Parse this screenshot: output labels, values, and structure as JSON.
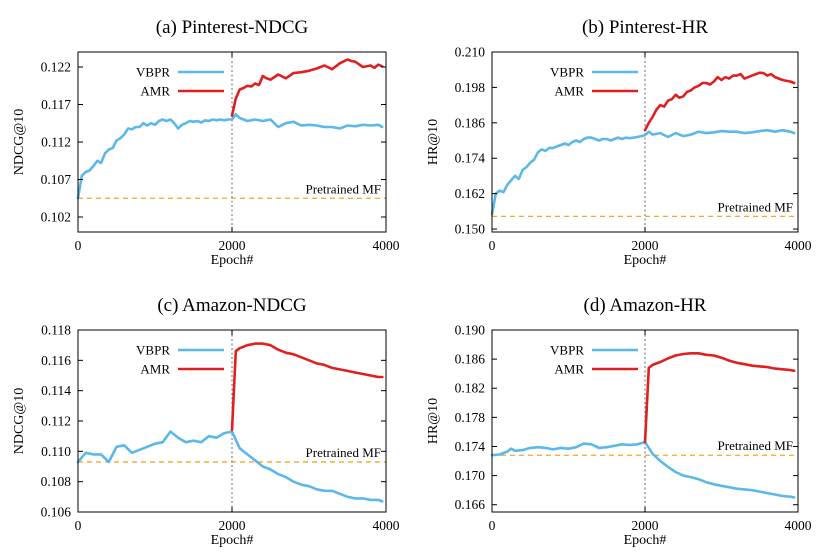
{
  "chart_data": [
    {
      "type": "line",
      "title": "(a) Pinterest-NDCG",
      "xlabel": "Epoch#",
      "ylabel": "NDCG@10",
      "xlim": [
        0,
        4000
      ],
      "ylim": [
        0.1,
        0.124
      ],
      "xticks": [
        "0",
        "2000",
        "4000"
      ],
      "yticks": [
        "0.102",
        "0.107",
        "0.112",
        "0.117",
        "0.122"
      ],
      "ytick_values": [
        0.102,
        0.107,
        0.112,
        0.117,
        0.122
      ],
      "grid": false,
      "legend_position": "top-left",
      "divider_x": 2000,
      "reference": {
        "label": "Pretrained MF",
        "y": 0.1045,
        "color": "#f5a623"
      },
      "series": [
        {
          "name": "VBPR",
          "color": "#5bb8e8",
          "x": [
            0,
            50,
            100,
            150,
            200,
            250,
            300,
            350,
            400,
            450,
            500,
            550,
            600,
            650,
            700,
            750,
            800,
            850,
            900,
            950,
            1000,
            1050,
            1100,
            1150,
            1200,
            1250,
            1300,
            1350,
            1400,
            1450,
            1500,
            1550,
            1600,
            1650,
            1700,
            1750,
            1800,
            1850,
            1900,
            1950,
            2000,
            2050,
            2100,
            2200,
            2300,
            2400,
            2500,
            2600,
            2700,
            2800,
            2900,
            3000,
            3100,
            3200,
            3300,
            3400,
            3500,
            3600,
            3700,
            3800,
            3900,
            3950
          ],
          "y": [
            0.1045,
            0.1075,
            0.108,
            0.1082,
            0.1088,
            0.1095,
            0.1092,
            0.1105,
            0.111,
            0.1112,
            0.1122,
            0.1125,
            0.113,
            0.1138,
            0.1137,
            0.114,
            0.114,
            0.1145,
            0.1142,
            0.1145,
            0.1143,
            0.1148,
            0.115,
            0.1148,
            0.115,
            0.1145,
            0.1138,
            0.1143,
            0.1145,
            0.1148,
            0.1147,
            0.1148,
            0.1146,
            0.1149,
            0.1148,
            0.115,
            0.1149,
            0.115,
            0.1149,
            0.115,
            0.115,
            0.1157,
            0.1152,
            0.1148,
            0.115,
            0.1148,
            0.115,
            0.114,
            0.1145,
            0.1147,
            0.1142,
            0.1143,
            0.1142,
            0.114,
            0.114,
            0.1138,
            0.1142,
            0.1141,
            0.1143,
            0.1142,
            0.1143,
            0.114
          ]
        },
        {
          "name": "AMR",
          "color": "#e02020",
          "x": [
            2000,
            2050,
            2100,
            2150,
            2200,
            2250,
            2300,
            2350,
            2400,
            2450,
            2500,
            2600,
            2700,
            2800,
            2900,
            3000,
            3100,
            3200,
            3300,
            3400,
            3500,
            3550,
            3600,
            3700,
            3800,
            3850,
            3900,
            3950
          ],
          "y": [
            0.1155,
            0.1178,
            0.119,
            0.1192,
            0.1195,
            0.1194,
            0.1198,
            0.1196,
            0.1208,
            0.1205,
            0.1203,
            0.121,
            0.1205,
            0.1212,
            0.1213,
            0.1215,
            0.1218,
            0.1222,
            0.1217,
            0.1225,
            0.123,
            0.1228,
            0.1227,
            0.122,
            0.1222,
            0.1219,
            0.1223,
            0.1221
          ]
        }
      ]
    },
    {
      "type": "line",
      "title": "(b) Pinterest-HR",
      "xlabel": "Epoch#",
      "ylabel": "HR@10",
      "xlim": [
        0,
        4000
      ],
      "ylim": [
        0.149,
        0.21
      ],
      "xticks": [
        "0",
        "2000",
        "4000"
      ],
      "yticks": [
        "0.150",
        "0.162",
        "0.174",
        "0.186",
        "0.198",
        "0.210"
      ],
      "ytick_values": [
        0.15,
        0.162,
        0.174,
        0.186,
        0.198,
        0.21
      ],
      "grid": false,
      "legend_position": "top-left",
      "divider_x": 2000,
      "reference": {
        "label": "Pretrained MF",
        "y": 0.1543,
        "color": "#f5a623"
      },
      "series": [
        {
          "name": "VBPR",
          "color": "#5bb8e8",
          "x": [
            0,
            50,
            100,
            150,
            200,
            250,
            300,
            350,
            400,
            450,
            500,
            550,
            600,
            650,
            700,
            750,
            800,
            850,
            900,
            950,
            1000,
            1050,
            1100,
            1150,
            1200,
            1250,
            1300,
            1350,
            1400,
            1450,
            1500,
            1550,
            1600,
            1650,
            1700,
            1750,
            1800,
            1850,
            1900,
            1950,
            2000,
            2050,
            2100,
            2200,
            2300,
            2400,
            2500,
            2600,
            2700,
            2800,
            2900,
            3000,
            3100,
            3200,
            3300,
            3400,
            3500,
            3600,
            3700,
            3800,
            3900,
            3950
          ],
          "y": [
            0.155,
            0.162,
            0.163,
            0.1625,
            0.165,
            0.1665,
            0.168,
            0.167,
            0.17,
            0.171,
            0.1725,
            0.1735,
            0.176,
            0.177,
            0.1765,
            0.1775,
            0.1775,
            0.178,
            0.1785,
            0.179,
            0.1785,
            0.1795,
            0.18,
            0.1795,
            0.1805,
            0.181,
            0.181,
            0.1805,
            0.18,
            0.1805,
            0.1805,
            0.18,
            0.1805,
            0.181,
            0.1805,
            0.181,
            0.1808,
            0.181,
            0.1812,
            0.1815,
            0.1818,
            0.183,
            0.182,
            0.1825,
            0.1812,
            0.1825,
            0.1815,
            0.182,
            0.183,
            0.1825,
            0.1828,
            0.1832,
            0.183,
            0.183,
            0.1825,
            0.1828,
            0.1832,
            0.1835,
            0.183,
            0.1835,
            0.183,
            0.1825
          ]
        },
        {
          "name": "AMR",
          "color": "#e02020",
          "x": [
            2000,
            2050,
            2100,
            2150,
            2200,
            2250,
            2300,
            2350,
            2400,
            2450,
            2500,
            2550,
            2600,
            2650,
            2700,
            2750,
            2800,
            2850,
            2900,
            2950,
            3000,
            3050,
            3100,
            3150,
            3200,
            3250,
            3300,
            3350,
            3400,
            3450,
            3500,
            3550,
            3600,
            3650,
            3700,
            3750,
            3800,
            3850,
            3900,
            3950
          ],
          "y": [
            0.1835,
            0.186,
            0.188,
            0.1905,
            0.192,
            0.1915,
            0.1935,
            0.194,
            0.1955,
            0.1945,
            0.195,
            0.1965,
            0.197,
            0.198,
            0.1985,
            0.1995,
            0.1995,
            0.199,
            0.2,
            0.2015,
            0.2005,
            0.2015,
            0.201,
            0.202,
            0.202,
            0.2025,
            0.201,
            0.2015,
            0.202,
            0.2025,
            0.203,
            0.2028,
            0.202,
            0.2025,
            0.2015,
            0.201,
            0.2005,
            0.2002,
            0.2,
            0.1995
          ]
        }
      ]
    },
    {
      "type": "line",
      "title": "(c) Amazon-NDCG",
      "xlabel": "Epoch#",
      "ylabel": "NDCG@10",
      "xlim": [
        0,
        4000
      ],
      "ylim": [
        0.106,
        0.118
      ],
      "xticks": [
        "0",
        "2000",
        "4000"
      ],
      "yticks": [
        "0.106",
        "0.108",
        "0.110",
        "0.112",
        "0.114",
        "0.116",
        "0.118"
      ],
      "ytick_values": [
        0.106,
        0.108,
        0.11,
        0.112,
        0.114,
        0.116,
        0.118
      ],
      "grid": false,
      "legend_position": "top-left",
      "divider_x": 2000,
      "reference": {
        "label": "Pretrained MF",
        "y": 0.1093,
        "color": "#f5a623"
      },
      "series": [
        {
          "name": "VBPR",
          "color": "#5bb8e8",
          "x": [
            0,
            100,
            200,
            300,
            400,
            500,
            600,
            700,
            800,
            900,
            1000,
            1100,
            1200,
            1250,
            1300,
            1400,
            1500,
            1600,
            1700,
            1800,
            1900,
            2000,
            2100,
            2200,
            2300,
            2400,
            2500,
            2600,
            2700,
            2800,
            2900,
            3000,
            3100,
            3200,
            3300,
            3400,
            3500,
            3600,
            3700,
            3800,
            3900,
            3950
          ],
          "y": [
            0.1093,
            0.1099,
            0.1098,
            0.1098,
            0.1093,
            0.1103,
            0.1104,
            0.1099,
            0.1101,
            0.1103,
            0.1105,
            0.1106,
            0.1113,
            0.1111,
            0.1109,
            0.1106,
            0.1107,
            0.1106,
            0.111,
            0.1109,
            0.1112,
            0.1113,
            0.1102,
            0.1098,
            0.1094,
            0.109,
            0.1088,
            0.1085,
            0.1083,
            0.108,
            0.1078,
            0.1077,
            0.1075,
            0.1074,
            0.1074,
            0.1072,
            0.107,
            0.1069,
            0.1069,
            0.1068,
            0.1068,
            0.1067
          ]
        },
        {
          "name": "AMR",
          "color": "#e02020",
          "x": [
            2000,
            2050,
            2100,
            2200,
            2300,
            2400,
            2500,
            2600,
            2700,
            2800,
            2900,
            3000,
            3100,
            3200,
            3300,
            3400,
            3500,
            3600,
            3700,
            3800,
            3900,
            3950
          ],
          "y": [
            0.1114,
            0.1166,
            0.1168,
            0.117,
            0.1171,
            0.1171,
            0.117,
            0.1167,
            0.1165,
            0.1164,
            0.1162,
            0.116,
            0.1158,
            0.1157,
            0.1155,
            0.1154,
            0.1153,
            0.1152,
            0.1151,
            0.115,
            0.1149,
            0.1149
          ]
        }
      ]
    },
    {
      "type": "line",
      "title": "(d) Amazon-HR",
      "xlabel": "Epoch#",
      "ylabel": "HR@10",
      "xlim": [
        0,
        4000
      ],
      "ylim": [
        0.165,
        0.19
      ],
      "xticks": [
        "0",
        "2000",
        "4000"
      ],
      "yticks": [
        "0.166",
        "0.170",
        "0.174",
        "0.178",
        "0.182",
        "0.186",
        "0.190"
      ],
      "ytick_values": [
        0.166,
        0.17,
        0.174,
        0.178,
        0.182,
        0.186,
        0.19
      ],
      "grid": false,
      "legend_position": "top-left",
      "divider_x": 2000,
      "reference": {
        "label": "Pretrained MF",
        "y": 0.1728,
        "color": "#f5a623"
      },
      "series": [
        {
          "name": "VBPR",
          "color": "#5bb8e8",
          "x": [
            0,
            100,
            200,
            250,
            300,
            400,
            500,
            600,
            700,
            800,
            900,
            1000,
            1100,
            1200,
            1300,
            1400,
            1500,
            1600,
            1700,
            1800,
            1900,
            2000,
            2100,
            2200,
            2300,
            2400,
            2500,
            2600,
            2700,
            2800,
            2900,
            3000,
            3100,
            3200,
            3300,
            3400,
            3500,
            3600,
            3700,
            3800,
            3900,
            3950
          ],
          "y": [
            0.1728,
            0.1729,
            0.1733,
            0.1737,
            0.1734,
            0.1735,
            0.1738,
            0.1739,
            0.1738,
            0.1736,
            0.1738,
            0.1737,
            0.1739,
            0.1744,
            0.1743,
            0.1738,
            0.1739,
            0.1741,
            0.1743,
            0.1742,
            0.1743,
            0.1746,
            0.173,
            0.172,
            0.1712,
            0.1705,
            0.17,
            0.1698,
            0.1695,
            0.1691,
            0.1688,
            0.1686,
            0.1684,
            0.1682,
            0.1681,
            0.168,
            0.1678,
            0.1676,
            0.1674,
            0.1672,
            0.1671,
            0.167
          ]
        },
        {
          "name": "AMR",
          "color": "#e02020",
          "x": [
            2000,
            2050,
            2100,
            2200,
            2300,
            2400,
            2500,
            2600,
            2700,
            2800,
            2900,
            3000,
            3100,
            3200,
            3300,
            3400,
            3500,
            3600,
            3700,
            3800,
            3900,
            3950
          ],
          "y": [
            0.1746,
            0.1848,
            0.1852,
            0.1856,
            0.1861,
            0.1865,
            0.1867,
            0.1868,
            0.1868,
            0.1866,
            0.1865,
            0.1862,
            0.1858,
            0.1855,
            0.1853,
            0.1851,
            0.185,
            0.1849,
            0.1847,
            0.1846,
            0.1845,
            0.1844
          ]
        }
      ]
    }
  ]
}
